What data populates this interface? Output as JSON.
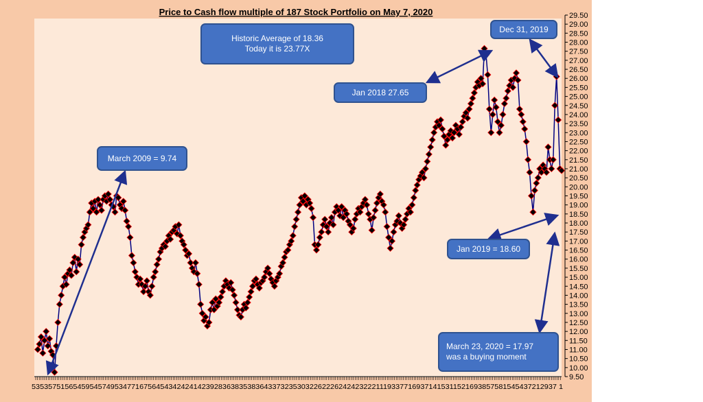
{
  "chart_data": {
    "type": "line",
    "title": "Price to Cash flow multiple of 187 Stock Portfolio on May 7, 2020",
    "ylim": [
      9.5,
      29.5
    ],
    "yticks": [
      9.5,
      10,
      10.5,
      11,
      11.5,
      12,
      12.5,
      13,
      13.5,
      14,
      14.5,
      15,
      15.5,
      16,
      16.5,
      17,
      17.5,
      18,
      18.5,
      19,
      19.5,
      20,
      20.5,
      21,
      21.5,
      22,
      22.5,
      23,
      23.5,
      24,
      24.5,
      25,
      25.5,
      26,
      26.5,
      27,
      27.5,
      28,
      28.5,
      29,
      29.5
    ],
    "ytick_labels": [
      "9.50",
      "10.00",
      "10.50",
      "11.00",
      "11.50",
      "12.00",
      "12.50",
      "13.00",
      "13.50",
      "14.00",
      "14.50",
      "15.00",
      "15.50",
      "16.00",
      "16.50",
      "17.00",
      "17.50",
      "18.00",
      "18.50",
      "19.00",
      "19.50",
      "20.00",
      "20.50",
      "21.00",
      "21.50",
      "22.00",
      "22.50",
      "23.00",
      "23.50",
      "24.00",
      "24.50",
      "25.00",
      "25.50",
      "26.00",
      "26.50",
      "27.00",
      "27.50",
      "28.00",
      "28.50",
      "29.00",
      "29.50"
    ],
    "x_axis_text": "5353575156545954574953477167564543424241423928363835383643373235303226222624242322211193377169371415311521693857581545437212937 1",
    "grid": false,
    "series": [
      {
        "color": "#000080",
        "marker_color": "#000000",
        "marker_edge": "#ff0000",
        "values": [
          11.0,
          11.3,
          11.7,
          10.8,
          11.5,
          12.0,
          11.2,
          11.6,
          10.9,
          10.7,
          9.74,
          11.2,
          12.5,
          13.5,
          14.0,
          14.5,
          15.0,
          14.6,
          15.2,
          15.4,
          15.1,
          15.8,
          16.1,
          15.3,
          16.0,
          15.7,
          16.8,
          17.2,
          17.5,
          17.7,
          17.9,
          18.6,
          19.1,
          18.8,
          19.2,
          18.6,
          19.3,
          19.0,
          18.7,
          19.3,
          19.5,
          19.2,
          19.6,
          19.3,
          19.0,
          18.9,
          18.6,
          19.5,
          19.4,
          19.0,
          18.8,
          19.2,
          18.7,
          18.1,
          17.8,
          17.2,
          16.2,
          15.8,
          15.3,
          15.0,
          14.6,
          14.9,
          14.6,
          14.2,
          14.5,
          14.8,
          14.2,
          14.0,
          14.5,
          15.0,
          15.3,
          15.7,
          16.0,
          16.4,
          16.6,
          16.8,
          16.7,
          17.0,
          17.3,
          17.1,
          17.5,
          17.6,
          17.8,
          17.4,
          17.9,
          17.3,
          17.0,
          16.8,
          16.5,
          16.2,
          16.3,
          15.8,
          15.5,
          15.3,
          15.8,
          15.2,
          14.6,
          13.5,
          13.0,
          12.6,
          12.8,
          12.3,
          12.5,
          13.2,
          13.6,
          13.2,
          13.8,
          13.4,
          13.6,
          13.9,
          14.2,
          14.5,
          14.8,
          14.6,
          14.4,
          14.7,
          14.3,
          14.0,
          13.6,
          13.2,
          12.9,
          12.8,
          13.2,
          13.5,
          13.3,
          13.6,
          13.9,
          14.2,
          14.5,
          14.8,
          14.9,
          14.6,
          14.4,
          14.7,
          14.8,
          15.0,
          15.3,
          15.5,
          15.2,
          14.9,
          14.7,
          14.5,
          14.8,
          15.0,
          15.2,
          15.6,
          15.8,
          16.1,
          16.4,
          16.5,
          16.8,
          17.0,
          17.3,
          17.8,
          18.2,
          18.6,
          19.0,
          19.4,
          19.2,
          19.5,
          19.0,
          19.3,
          19.1,
          18.8,
          18.3,
          16.8,
          16.5,
          16.8,
          17.2,
          17.5,
          17.9,
          18.2,
          17.8,
          17.5,
          18.0,
          18.3,
          17.9,
          18.6,
          18.9,
          18.7,
          18.4,
          18.9,
          18.3,
          18.7,
          18.5,
          18.1,
          17.9,
          17.5,
          17.7,
          18.2,
          18.5,
          18.8,
          18.6,
          18.9,
          19.1,
          19.3,
          19.0,
          18.5,
          18.2,
          17.6,
          18.3,
          18.7,
          19.1,
          19.4,
          19.6,
          19.2,
          19.0,
          18.6,
          17.8,
          17.2,
          16.6,
          17.0,
          17.5,
          17.9,
          18.1,
          18.4,
          18.0,
          17.7,
          17.9,
          18.2,
          18.5,
          18.8,
          18.6,
          19.0,
          19.4,
          19.8,
          20.1,
          20.4,
          20.6,
          20.8,
          20.5,
          21.0,
          21.4,
          21.8,
          22.2,
          22.6,
          23.0,
          23.3,
          23.6,
          23.4,
          23.7,
          23.2,
          22.8,
          22.3,
          22.6,
          22.9,
          23.1,
          22.7,
          23.0,
          23.4,
          23.2,
          22.9,
          23.3,
          23.6,
          23.9,
          24.1,
          23.8,
          24.3,
          24.6,
          24.9,
          25.2,
          25.5,
          25.8,
          25.6,
          26.0,
          25.7,
          27.65,
          27.3,
          26.2,
          24.3,
          23.0,
          24.0,
          24.8,
          24.4,
          23.6,
          23.0,
          23.4,
          24.0,
          24.6,
          24.9,
          25.3,
          25.6,
          25.9,
          25.5,
          26.0,
          26.3,
          25.9,
          24.3,
          24.0,
          23.6,
          23.2,
          22.5,
          21.5,
          20.8,
          19.5,
          18.6,
          19.8,
          20.2,
          20.5,
          21.0,
          20.8,
          21.2,
          21.0,
          20.8,
          22.2,
          21.5,
          21.0,
          21.5,
          24.5,
          26.1,
          23.7,
          21.0,
          20.9
        ]
      }
    ],
    "annotations": [
      {
        "text": "Historic Average of 18.36",
        "text2": "Today it is 23.77X"
      },
      {
        "text": "Dec 31, 2019"
      },
      {
        "text": "Jan 2018  27.65"
      },
      {
        "text": "March 2009 = 9.74"
      },
      {
        "text": "Jan 2019 = 18.60"
      },
      {
        "text": "March 23, 2020 = 17.97",
        "text2": "was a buying moment"
      }
    ],
    "colors": {
      "outer_background": "#f8c9a8",
      "plot_background": "#fde9d9",
      "callout_fill": "#4472c4",
      "arrow": "#1f2f8f"
    }
  }
}
